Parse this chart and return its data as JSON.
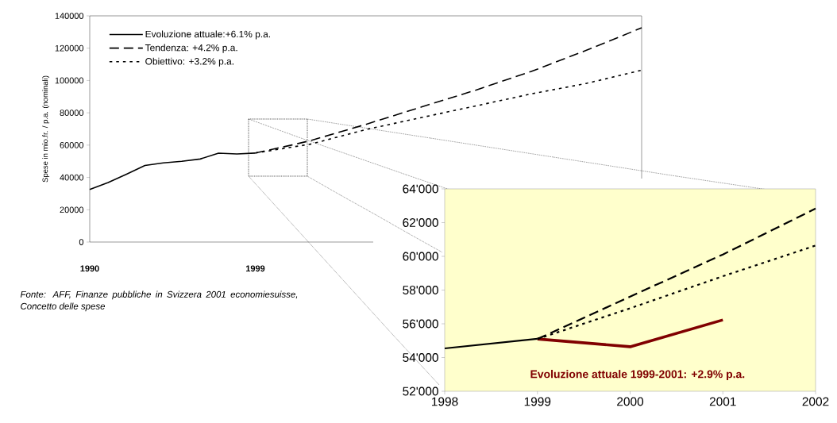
{
  "chart_data": [
    {
      "type": "line",
      "ylabel": "Spese in mio.fr. / p.a. (nominali)",
      "xlim": [
        1990,
        2020
      ],
      "xticks": [
        1990,
        1999
      ],
      "ylim": [
        0,
        140000
      ],
      "yticks": [
        0,
        20000,
        40000,
        60000,
        80000,
        100000,
        120000,
        140000
      ],
      "legend": "top left",
      "marker": "none",
      "series": [
        {
          "name": "Evoluzione attuale:+6.1% p.a.",
          "color": "#000000",
          "line_style": "solid",
          "x": [
            1990,
            1991,
            1992,
            1993,
            1994,
            1995,
            1996,
            1997,
            1998,
            1999
          ],
          "values": [
            32500,
            36800,
            42000,
            47400,
            49000,
            50000,
            51400,
            55000,
            54500,
            55100
          ]
        },
        {
          "name": "Tendenza: +4.2% p.a.",
          "color": "#000000",
          "line_style": "dashed",
          "x": [
            1999,
            2000,
            2001,
            2002,
            2005,
            2008,
            2011,
            2014,
            2017,
            2020
          ],
          "values": [
            55100,
            57600,
            60100,
            62800,
            72800,
            83500,
            94100,
            105600,
            118700,
            132600
          ]
        },
        {
          "name": "Obiettivo: +3.2% p.a.",
          "color": "#000000",
          "line_style": "dotted",
          "x": [
            1999,
            2000,
            2001,
            2002,
            2005,
            2008,
            2011,
            2014,
            2017,
            2020
          ],
          "values": [
            55100,
            56900,
            58800,
            60600,
            69600,
            77000,
            84300,
            91700,
            98200,
            106400
          ]
        }
      ],
      "annotations": [
        "Fonte: AFF, Finanze pubbliche in Svizzera 2001 economiesuisse, Concetto delle spese"
      ]
    },
    {
      "type": "line",
      "xlim": [
        1998,
        2002
      ],
      "xticks": [
        1998,
        1999,
        2000,
        2001,
        2002
      ],
      "ylim": [
        52000,
        64000
      ],
      "yticks": [
        {
          "value": 52000,
          "label": "52'000"
        },
        {
          "value": 54000,
          "label": "54'000"
        },
        {
          "value": 56000,
          "label": "56'000"
        },
        {
          "value": 58000,
          "label": "58'000"
        },
        {
          "value": 60000,
          "label": "60'000"
        },
        {
          "value": 62000,
          "label": "62'000"
        },
        {
          "value": 64000,
          "label": "64'000"
        }
      ],
      "marker": "none",
      "series": [
        {
          "color": "#000000",
          "line_style": "solid",
          "x": [
            1998,
            1999
          ],
          "values": [
            54540,
            55110
          ]
        },
        {
          "name": "Evoluzione attuale 1999-2001: +2.9% p.a.",
          "color": "#800000",
          "line_style": "solid",
          "x": [
            1999,
            2000,
            2001
          ],
          "values": [
            55100,
            54640,
            56230
          ]
        },
        {
          "color": "#000000",
          "line_style": "dashed",
          "x": [
            1999,
            2000,
            2001,
            2002
          ],
          "values": [
            55100,
            57610,
            60110,
            62830
          ]
        },
        {
          "color": "#000000",
          "line_style": "dotted",
          "x": [
            1999,
            2000,
            2001,
            2002
          ],
          "values": [
            55100,
            56920,
            58820,
            60640
          ]
        }
      ]
    }
  ]
}
